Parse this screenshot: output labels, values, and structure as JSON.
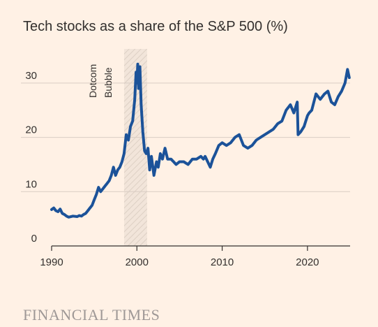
{
  "chart_data": {
    "type": "line",
    "title": "Tech stocks as a share of the S&P 500 (%)",
    "xlabel": "",
    "ylabel": "",
    "xlim": [
      1990,
      2025
    ],
    "ylim": [
      0,
      35
    ],
    "x_ticks": [
      1990,
      2000,
      2010,
      2020
    ],
    "y_ticks": [
      0,
      10,
      20,
      30
    ],
    "grid": "horizontal",
    "annotation": {
      "lines": [
        "Dotcom",
        "Bubble"
      ],
      "span": [
        1998.5,
        2001.2
      ]
    },
    "series": [
      {
        "color": "#1b5299",
        "x": [
          1990.0,
          1990.25,
          1990.5,
          1990.75,
          1991.0,
          1991.25,
          1991.5,
          1991.75,
          1992.0,
          1992.5,
          1993.0,
          1993.25,
          1993.5,
          1993.75,
          1994.0,
          1994.25,
          1994.5,
          1994.75,
          1995.0,
          1995.25,
          1995.5,
          1995.75,
          1996.0,
          1996.25,
          1996.5,
          1996.75,
          1997.0,
          1997.25,
          1997.5,
          1997.75,
          1998.0,
          1998.25,
          1998.5,
          1998.75,
          1999.0,
          1999.25,
          1999.5,
          1999.75,
          1999.9,
          2000.0,
          2000.1,
          2000.2,
          2000.35,
          2000.5,
          2000.7,
          2000.9,
          2001.1,
          2001.3,
          2001.5,
          2001.7,
          2002.0,
          2002.3,
          2002.5,
          2002.75,
          2003.0,
          2003.3,
          2003.6,
          2004.0,
          2004.3,
          2004.6,
          2005.0,
          2005.5,
          2006.0,
          2006.5,
          2007.0,
          2007.5,
          2007.8,
          2008.0,
          2008.3,
          2008.6,
          2008.9,
          2009.2,
          2009.6,
          2010.0,
          2010.5,
          2011.0,
          2011.5,
          2012.0,
          2012.5,
          2013.0,
          2013.5,
          2014.0,
          2014.5,
          2015.0,
          2015.5,
          2016.0,
          2016.5,
          2017.0,
          2017.5,
          2018.0,
          2018.4,
          2018.8,
          2018.9,
          2019.2,
          2019.6,
          2020.0,
          2020.2,
          2020.5,
          2021.0,
          2021.5,
          2022.0,
          2022.4,
          2022.8,
          2023.2,
          2023.6,
          2024.0,
          2024.4,
          2024.7,
          2024.9
        ],
        "y": [
          6.7,
          7.0,
          6.5,
          6.3,
          6.8,
          6.0,
          5.8,
          5.5,
          5.3,
          5.5,
          5.4,
          5.6,
          5.5,
          5.8,
          6.0,
          6.5,
          7.0,
          7.5,
          8.5,
          9.5,
          10.8,
          10.0,
          10.5,
          11.0,
          11.5,
          12.0,
          13.0,
          14.5,
          13.0,
          14.0,
          14.5,
          15.5,
          17.0,
          20.5,
          19.5,
          22.0,
          23.0,
          27.0,
          32.0,
          30.0,
          33.5,
          29.0,
          33.0,
          26.0,
          21.0,
          17.5,
          17.0,
          18.0,
          14.0,
          16.5,
          13.0,
          15.5,
          14.5,
          17.0,
          16.0,
          18.0,
          16.0,
          16.0,
          15.5,
          15.0,
          15.5,
          15.5,
          15.0,
          16.0,
          16.0,
          16.5,
          16.0,
          16.5,
          15.5,
          14.5,
          16.0,
          17.0,
          18.5,
          19.0,
          18.5,
          19.0,
          20.0,
          20.5,
          18.5,
          18.0,
          18.5,
          19.5,
          20.0,
          20.5,
          21.0,
          21.5,
          22.5,
          23.0,
          25.0,
          26.0,
          24.5,
          26.5,
          20.5,
          21.0,
          22.0,
          24.0,
          24.5,
          25.0,
          28.0,
          27.0,
          28.0,
          28.5,
          26.5,
          26.0,
          27.5,
          28.5,
          30.0,
          32.5,
          31.0
        ]
      }
    ]
  },
  "footer": {
    "source": "FINANCIAL TIMES"
  }
}
